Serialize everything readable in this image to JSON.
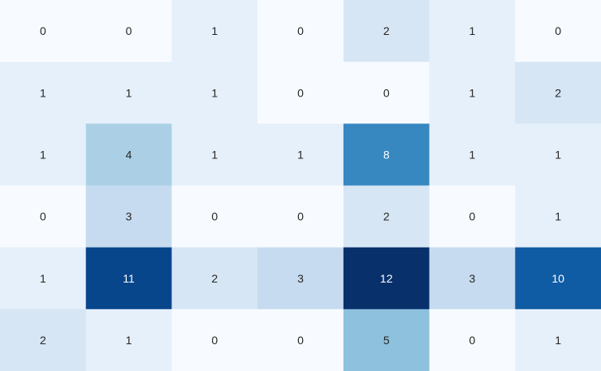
{
  "chart_data": {
    "type": "heatmap",
    "colormap": "Blues",
    "vmin": 0,
    "vmax": 12,
    "values": [
      [
        0,
        0,
        1,
        0,
        2,
        1,
        0
      ],
      [
        1,
        1,
        1,
        0,
        0,
        1,
        2
      ],
      [
        1,
        4,
        1,
        1,
        8,
        1,
        1
      ],
      [
        0,
        3,
        0,
        0,
        2,
        0,
        1
      ],
      [
        1,
        11,
        2,
        3,
        12,
        3,
        10
      ],
      [
        2,
        1,
        0,
        0,
        5,
        0,
        1
      ]
    ],
    "annotations": true
  }
}
